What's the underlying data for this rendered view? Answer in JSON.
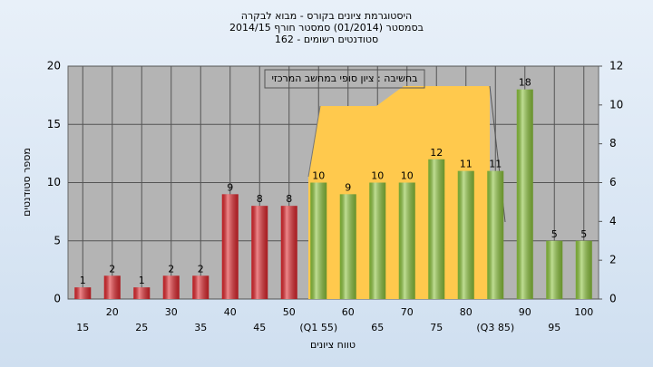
{
  "chart_data": {
    "type": "bar",
    "title": "היסטוגרמת ציונים בקורס - מבוא לבקרה",
    "subtitle": "בסמסטר  (01/2014)  סמסטר חורף 2014/15",
    "subtitle2": "סטודנטים רשומים - 162",
    "annotation": "בחשיבה : ציון סופי במחשב המרכזי",
    "ylabel": "מספר סטודנטים",
    "xlabel": "טווח ציונים",
    "categories": [
      "15",
      "20",
      "25",
      "30",
      "35",
      "40",
      "45",
      "50",
      "(Q1 55)",
      "60",
      "65",
      "70",
      "75",
      "80",
      "(Q3 85)",
      "90",
      "95",
      "100"
    ],
    "values": [
      1,
      2,
      1,
      2,
      2,
      9,
      8,
      8,
      10,
      9,
      10,
      10,
      12,
      11,
      11,
      18,
      5,
      5
    ],
    "colors": [
      "#e0262c",
      "#e0262c",
      "#e0262c",
      "#e0262c",
      "#e0262c",
      "#e0262c",
      "#e0262c",
      "#e0262c",
      "#8cc43c",
      "#8cc43c",
      "#8cc43c",
      "#8cc43c",
      "#8cc43c",
      "#8cc43c",
      "#8cc43c",
      "#8cc43c",
      "#8cc43c",
      "#8cc43c"
    ],
    "ylim": [
      0,
      20
    ],
    "yticks": [
      0,
      5,
      10,
      15,
      20
    ],
    "y2lim": [
      0,
      12
    ],
    "y2ticks": [
      0,
      2,
      4,
      6,
      8,
      10,
      12
    ],
    "grid": true
  }
}
